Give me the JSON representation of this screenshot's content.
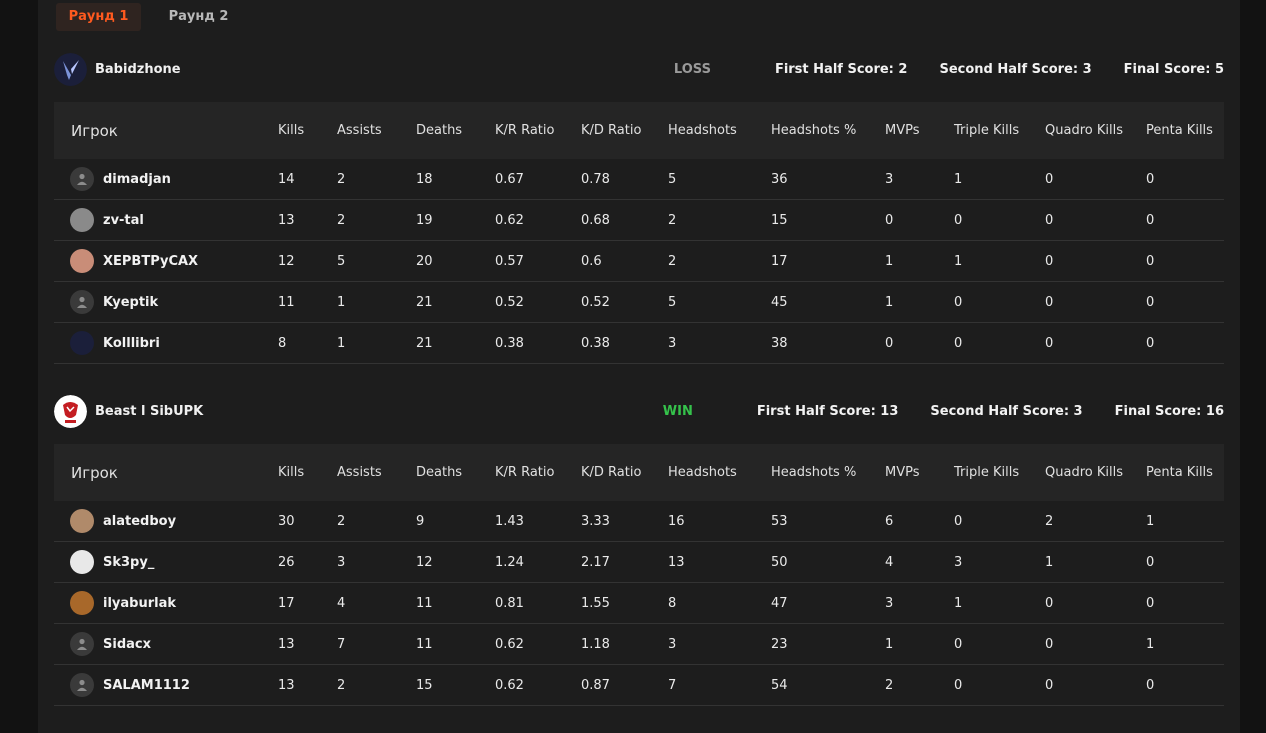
{
  "tabs": [
    {
      "label": "Раунд 1",
      "active": true
    },
    {
      "label": "Раунд 2",
      "active": false
    }
  ],
  "headers": [
    "Игрок",
    "Kills",
    "Assists",
    "Deaths",
    "K/R Ratio",
    "K/D Ratio",
    "Headshots",
    "Headshots %",
    "MVPs",
    "Triple Kills",
    "Quadro Kills",
    "Penta Kills"
  ],
  "teams": [
    {
      "name": "Babidzhone",
      "result": "LOSS",
      "first_half": "First Half Score: 2",
      "second_half": "Second Half Score: 3",
      "final": "Final Score: 5",
      "players": [
        {
          "name": "dimadjan",
          "avatar": "default-avatar-icon",
          "kills": "14",
          "assists": "2",
          "deaths": "18",
          "kr": "0.67",
          "kd": "0.78",
          "hs": "5",
          "hsp": "36",
          "mvps": "3",
          "triple": "1",
          "quadro": "0",
          "penta": "0"
        },
        {
          "name": "zv-tal",
          "avatar": "gray-photo-avatar",
          "kills": "13",
          "assists": "2",
          "deaths": "19",
          "kr": "0.62",
          "kd": "0.68",
          "hs": "2",
          "hsp": "15",
          "mvps": "0",
          "triple": "0",
          "quadro": "0",
          "penta": "0"
        },
        {
          "name": "XEPBTPyCAX",
          "avatar": "face-photo-avatar",
          "kills": "12",
          "assists": "5",
          "deaths": "20",
          "kr": "0.57",
          "kd": "0.6",
          "hs": "2",
          "hsp": "17",
          "mvps": "1",
          "triple": "1",
          "quadro": "0",
          "penta": "0"
        },
        {
          "name": "Kyeptik",
          "avatar": "default-avatar-icon",
          "kills": "11",
          "assists": "1",
          "deaths": "21",
          "kr": "0.52",
          "kd": "0.52",
          "hs": "5",
          "hsp": "45",
          "mvps": "1",
          "triple": "0",
          "quadro": "0",
          "penta": "0"
        },
        {
          "name": "Kolllibri",
          "avatar": "team-logo-avatar",
          "kills": "8",
          "assists": "1",
          "deaths": "21",
          "kr": "0.38",
          "kd": "0.38",
          "hs": "3",
          "hsp": "38",
          "mvps": "0",
          "triple": "0",
          "quadro": "0",
          "penta": "0"
        }
      ]
    },
    {
      "name": "Beast l SibUPK",
      "result": "WIN",
      "first_half": "First Half Score: 13",
      "second_half": "Second Half Score: 3",
      "final": "Final Score: 16",
      "players": [
        {
          "name": "alatedboy",
          "avatar": "dog-photo-avatar",
          "kills": "30",
          "assists": "2",
          "deaths": "9",
          "kr": "1.43",
          "kd": "3.33",
          "hs": "16",
          "hsp": "53",
          "mvps": "6",
          "triple": "0",
          "quadro": "2",
          "penta": "1"
        },
        {
          "name": "Sk3py_",
          "avatar": "bw-photo-avatar",
          "kills": "26",
          "assists": "3",
          "deaths": "12",
          "kr": "1.24",
          "kd": "2.17",
          "hs": "13",
          "hsp": "50",
          "mvps": "4",
          "triple": "3",
          "quadro": "1",
          "penta": "0"
        },
        {
          "name": "ilyaburlak",
          "avatar": "lion-photo-avatar",
          "kills": "17",
          "assists": "4",
          "deaths": "11",
          "kr": "0.81",
          "kd": "1.55",
          "hs": "8",
          "hsp": "47",
          "mvps": "3",
          "triple": "1",
          "quadro": "0",
          "penta": "0"
        },
        {
          "name": "Sidacx",
          "avatar": "default-avatar-icon",
          "kills": "13",
          "assists": "7",
          "deaths": "11",
          "kr": "0.62",
          "kd": "1.18",
          "hs": "3",
          "hsp": "23",
          "mvps": "1",
          "triple": "0",
          "quadro": "0",
          "penta": "1"
        },
        {
          "name": "SALAM1112",
          "avatar": "default-avatar-icon",
          "kills": "13",
          "assists": "2",
          "deaths": "15",
          "kr": "0.62",
          "kd": "0.87",
          "hs": "7",
          "hsp": "54",
          "mvps": "2",
          "triple": "0",
          "quadro": "0",
          "penta": "0"
        }
      ]
    }
  ],
  "colors": {
    "accent": "#ff5a1f",
    "win": "#35c24b",
    "loss": "#9a9a9a"
  }
}
